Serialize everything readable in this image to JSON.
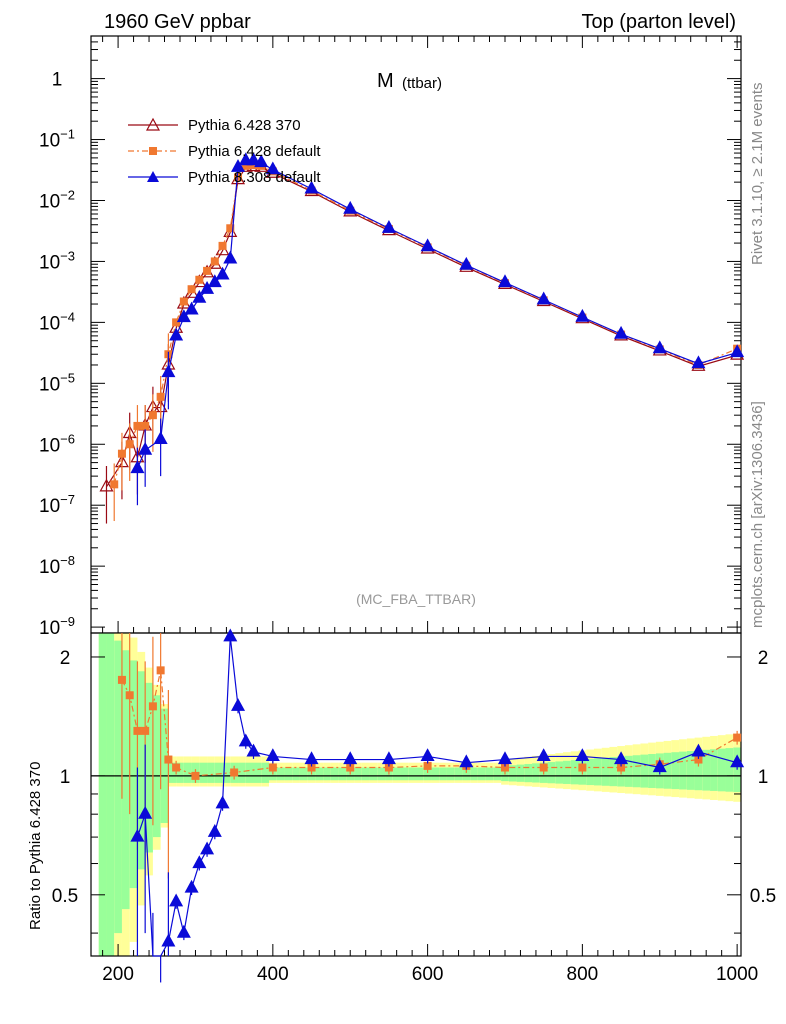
{
  "header": {
    "left": "1960 GeV ppbar",
    "right": "Top (parton level)"
  },
  "side_labels": {
    "rivet": "Rivet 3.1.10, ≥ 2.1M events",
    "mcplots": "mcplots.cern.ch [arXiv:1306.3436]"
  },
  "plot": {
    "title_main": "M",
    "title_sub": "(ttbar)",
    "analysis": "(MC_FBA_TTBAR)",
    "ratio_ylabel": "Ratio to Pythia 6.428 370"
  },
  "colors": {
    "p370": "#9a0a14",
    "pdef": "#f07830",
    "p8": "#0a0ad8",
    "band_green": "#99ff99",
    "band_yellow": "#ffff99"
  },
  "legend": [
    {
      "label": "Pythia 6.428 370",
      "marker": "open-triangle"
    },
    {
      "label": "Pythia 6.428 default",
      "marker": "square"
    },
    {
      "label": "Pythia 8.308 default",
      "marker": "filled-triangle"
    }
  ],
  "chart_data": [
    {
      "type": "line",
      "yscale": "log",
      "xlim": [
        165,
        1005
      ],
      "ylim": [
        8e-10,
        5
      ],
      "ytick_labels": [
        "1",
        "10^-1",
        "10^-2",
        "10^-3",
        "10^-4",
        "10^-5",
        "10^-6",
        "10^-7",
        "10^-8",
        "10^-9"
      ],
      "series": [
        {
          "name": "Pythia 6.428 370",
          "x": [
            185,
            205,
            215,
            225,
            235,
            245,
            255,
            265,
            275,
            285,
            295,
            305,
            315,
            325,
            335,
            345,
            355,
            365,
            375,
            385,
            400,
            450,
            500,
            550,
            600,
            650,
            700,
            750,
            800,
            850,
            900,
            950,
            1000
          ],
          "y": [
            2e-07,
            5e-07,
            1.5e-06,
            6e-07,
            2e-06,
            4e-06,
            4e-06,
            2e-05,
            8e-05,
            0.0002,
            0.0003,
            0.00045,
            0.00065,
            0.0009,
            0.0015,
            0.003,
            0.022,
            0.035,
            0.036,
            0.035,
            0.028,
            0.014,
            0.0065,
            0.0032,
            0.0016,
            0.0008,
            0.00042,
            0.00022,
            0.000115,
            6e-05,
            3.4e-05,
            1.9e-05,
            2.9e-05
          ]
        },
        {
          "name": "Pythia 6.428 default",
          "x": [
            195,
            205,
            215,
            225,
            235,
            245,
            255,
            265,
            275,
            285,
            295,
            305,
            315,
            325,
            335,
            345,
            355,
            365,
            375,
            385,
            400,
            450,
            500,
            550,
            600,
            650,
            700,
            750,
            800,
            850,
            900,
            950,
            1000
          ],
          "y": [
            2.2e-07,
            7e-07,
            1e-06,
            2e-06,
            2e-06,
            3e-06,
            6e-06,
            3e-05,
            0.0001,
            0.00022,
            0.00035,
            0.0005,
            0.0007,
            0.001,
            0.0018,
            0.0035,
            0.024,
            0.037,
            0.038,
            0.037,
            0.03,
            0.0145,
            0.0068,
            0.0034,
            0.0017,
            0.00085,
            0.00044,
            0.00023,
            0.00012,
            6.3e-05,
            3.6e-05,
            2e-05,
            3.7e-05
          ]
        },
        {
          "name": "Pythia 8.308 default",
          "x": [
            225,
            235,
            255,
            265,
            275,
            285,
            295,
            305,
            315,
            325,
            335,
            345,
            355,
            365,
            375,
            385,
            400,
            450,
            500,
            550,
            600,
            650,
            700,
            750,
            800,
            850,
            900,
            950,
            1000
          ],
          "y": [
            4e-07,
            8e-07,
            1.2e-06,
            1.5e-05,
            6e-05,
            0.00012,
            0.00016,
            0.00025,
            0.00035,
            0.00045,
            0.0006,
            0.0011,
            0.035,
            0.045,
            0.045,
            0.042,
            0.032,
            0.0155,
            0.0072,
            0.0035,
            0.00175,
            0.00087,
            0.00045,
            0.000235,
            0.000122,
            6.4e-05,
            3.7e-05,
            2.1e-05,
            3.2e-05
          ]
        }
      ]
    },
    {
      "type": "line",
      "xlim": [
        165,
        1005
      ],
      "ylim": [
        0.35,
        2.3
      ],
      "xtick_labels": [
        "200",
        "400",
        "600",
        "800",
        "1000"
      ],
      "ytick_labels": [
        "0.5",
        "1",
        "2"
      ],
      "series": [
        {
          "name": "Pythia 6.428 default",
          "x": [
            205,
            215,
            225,
            235,
            245,
            255,
            265,
            275,
            300,
            350,
            400,
            450,
            500,
            550,
            600,
            650,
            700,
            750,
            800,
            850,
            900,
            950,
            1000
          ],
          "y": [
            1.75,
            1.6,
            1.3,
            1.3,
            1.5,
            1.85,
            1.1,
            1.05,
            1.0,
            1.02,
            1.05,
            1.05,
            1.05,
            1.05,
            1.06,
            1.06,
            1.05,
            1.05,
            1.05,
            1.05,
            1.07,
            1.1,
            1.25
          ]
        },
        {
          "name": "Pythia 8.308 default",
          "x": [
            225,
            235,
            245,
            255,
            265,
            275,
            285,
            295,
            305,
            315,
            325,
            335,
            345,
            355,
            365,
            375,
            400,
            450,
            500,
            550,
            600,
            650,
            700,
            750,
            800,
            850,
            900,
            950,
            1000
          ],
          "y": [
            0.7,
            0.8,
            0.3,
            0.2,
            0.38,
            0.48,
            0.4,
            0.52,
            0.6,
            0.65,
            0.72,
            0.85,
            2.25,
            1.5,
            1.22,
            1.15,
            1.12,
            1.1,
            1.1,
            1.1,
            1.12,
            1.08,
            1.1,
            1.12,
            1.12,
            1.1,
            1.05,
            1.15,
            1.08
          ]
        }
      ]
    }
  ]
}
